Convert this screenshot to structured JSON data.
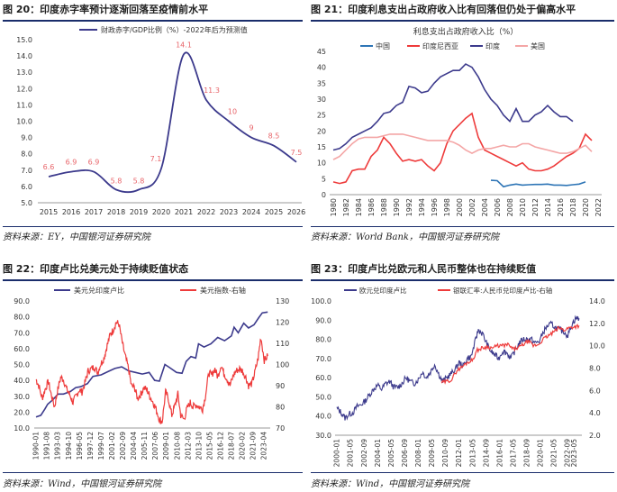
{
  "panels": [
    {
      "title": "图 20：印度赤字率预计逐渐回落至疫情前水平",
      "source": "资料来源：EY，中国银河证券研究院",
      "chart_data": {
        "type": "line",
        "legend": "财政赤字/GDP比例（%）-2022年后为预测值",
        "x": [
          2015,
          2016,
          2017,
          2018,
          2019,
          2020,
          2021,
          2022,
          2023,
          2024,
          2025,
          2026
        ],
        "ylim": [
          5.0,
          15.0
        ],
        "yticks": [
          "5.0",
          "6.0",
          "7.0",
          "8.0",
          "9.0",
          "10.0",
          "11.0",
          "12.0",
          "13.0",
          "14.0",
          "15.0"
        ],
        "xticks": [
          "2015",
          "2016",
          "2017",
          "2018",
          "2019",
          "2020",
          "2021",
          "2022",
          "2023",
          "2024",
          "2025",
          "2026"
        ],
        "values": [
          6.6,
          6.9,
          6.9,
          5.8,
          5.8,
          7.1,
          14.1,
          11.3,
          10.0,
          9.0,
          8.5,
          7.5
        ],
        "labels": [
          "6.6",
          "6.9",
          "6.9",
          "5.8",
          "5.8",
          "7.1",
          "14.1",
          "11.3",
          "10",
          "9",
          "8.5",
          "7.5"
        ],
        "line_color": "#3c3a8c",
        "label_color": "#e8656a"
      }
    },
    {
      "title": "图 21：印度利息支出占政府收入比有回落但仍处于偏高水平",
      "source": "资料来源：World Bank，中国银河证券研究院",
      "chart_data": {
        "type": "line",
        "title": "利息支出占政府收入比（%）",
        "ylim": [
          0,
          45
        ],
        "yticks": [
          "0",
          "5",
          "10",
          "15",
          "20",
          "25",
          "30",
          "35",
          "40",
          "45"
        ],
        "xticks": [
          "1980",
          "1982",
          "1984",
          "1986",
          "1988",
          "1990",
          "1992",
          "1994",
          "1996",
          "1998",
          "2000",
          "2002",
          "2004",
          "2006",
          "2008",
          "2010",
          "2012",
          "2014",
          "2016",
          "2018",
          "2020",
          "2022"
        ],
        "series": [
          {
            "name": "中国",
            "color": "#2e75b6",
            "x": [
              2005,
              2006,
              2007,
              2008,
              2009,
              2010,
              2011,
              2012,
              2013,
              2014,
              2015,
              2016,
              2017,
              2018,
              2019,
              2020
            ],
            "values": [
              4.5,
              4.4,
              2.5,
              3.0,
              3.3,
              3.0,
              3.1,
              3.2,
              3.2,
              3.3,
              3.0,
              3.0,
              2.9,
              3.1,
              3.3,
              4.0
            ]
          },
          {
            "name": "印度尼西亚",
            "color": "#ee3b3b",
            "x": [
              1980,
              1981,
              1982,
              1983,
              1984,
              1985,
              1986,
              1987,
              1988,
              1989,
              1990,
              1991,
              1992,
              1993,
              1994,
              1995,
              1996,
              1997,
              1998,
              1999,
              2000,
              2001,
              2002,
              2003,
              2004,
              2005,
              2006,
              2007,
              2008,
              2009,
              2010,
              2011,
              2012,
              2013,
              2014,
              2015,
              2016,
              2017,
              2018,
              2019,
              2020,
              2021
            ],
            "values": [
              4,
              3.5,
              4,
              7.5,
              8,
              8,
              12,
              14,
              18,
              16,
              13,
              10.5,
              11,
              10.5,
              11,
              9,
              7.5,
              10,
              16,
              20,
              22,
              24,
              25.5,
              18,
              14,
              13,
              12,
              11,
              10,
              9,
              10,
              8,
              7.5,
              7.5,
              8,
              9,
              10.5,
              12,
              13,
              14.5,
              19,
              17
            ]
          },
          {
            "name": "印度",
            "color": "#3c3a8c",
            "x": [
              1980,
              1981,
              1982,
              1983,
              1984,
              1985,
              1986,
              1987,
              1988,
              1989,
              1990,
              1991,
              1992,
              1993,
              1994,
              1995,
              1996,
              1997,
              1998,
              1999,
              2000,
              2001,
              2002,
              2003,
              2004,
              2005,
              2006,
              2007,
              2008,
              2009,
              2010,
              2011,
              2012,
              2013,
              2014,
              2015,
              2016,
              2017,
              2018
            ],
            "values": [
              14,
              14.5,
              16,
              18,
              19,
              20,
              21,
              23,
              25.5,
              26,
              28,
              29,
              34,
              33.5,
              32,
              32.5,
              35,
              37,
              38,
              39,
              39,
              41,
              40,
              37,
              33,
              30,
              28,
              25,
              23,
              27,
              23,
              23,
              25,
              26,
              28,
              26,
              24.5,
              24.5,
              23
            ]
          },
          {
            "name": "美国",
            "color": "#f4a6a6",
            "x": [
              1980,
              1981,
              1982,
              1983,
              1984,
              1985,
              1986,
              1987,
              1988,
              1989,
              1990,
              1991,
              1992,
              1993,
              1994,
              1995,
              1996,
              1997,
              1998,
              1999,
              2000,
              2001,
              2002,
              2003,
              2004,
              2005,
              2006,
              2007,
              2008,
              2009,
              2010,
              2011,
              2012,
              2013,
              2014,
              2015,
              2016,
              2017,
              2018,
              2019,
              2020,
              2021
            ],
            "values": [
              11,
              12,
              14,
              16,
              17.5,
              18,
              18,
              18,
              18.5,
              19,
              19,
              19,
              18.5,
              18,
              17.5,
              17,
              17,
              17,
              17,
              16.5,
              15.5,
              14,
              13,
              14,
              14.5,
              14.5,
              15,
              15.5,
              15,
              15,
              16,
              16,
              15,
              14.5,
              14,
              13.5,
              13,
              13,
              13.5,
              14.5,
              15.5,
              13.5
            ]
          }
        ]
      }
    },
    {
      "title": "图 22：印度卢比兑美元处于持续贬值状态",
      "source": "资料来源：Wind，中国银河证券研究院",
      "chart_data": {
        "type": "line",
        "ylim": [
          10.0,
          90.0
        ],
        "yticks": [
          "10.0",
          "20.0",
          "30.0",
          "40.0",
          "50.0",
          "60.0",
          "70.0",
          "80.0",
          "90.0"
        ],
        "y2lim": [
          70,
          130
        ],
        "y2ticks": [
          "70",
          "80",
          "90",
          "100",
          "110",
          "120",
          "130"
        ],
        "xticks": [
          "1990-01",
          "1991-08",
          "1993-03",
          "1994-10",
          "1996-05",
          "1997-12",
          "1999-07",
          "2001-02",
          "2002-09",
          "2004-04",
          "2005-11",
          "2007-06",
          "2009-01",
          "2010-08",
          "2012-03",
          "2013-10",
          "2015-05",
          "2016-12",
          "2018-07",
          "2020-02",
          "2021-09",
          "2023-04"
        ],
        "series": [
          {
            "name": "美元兑印度卢比",
            "color": "#3c3a8c",
            "axis": "left",
            "x": [
              1990.0,
              1990.7,
              1991.3,
              1991.7,
              1992.5,
              1993.2,
              1994.0,
              1995.0,
              1995.8,
              1996.5,
              1997.5,
              1998.3,
              1999.5,
              2000.5,
              2001.5,
              2002.5,
              2003.5,
              2004.5,
              2005.5,
              2006.5,
              2007.3,
              2008.0,
              2008.8,
              2009.5,
              2010.5,
              2011.3,
              2011.9,
              2012.6,
              2013.3,
              2013.7,
              2014.5,
              2015.5,
              2016.5,
              2017.5,
              2018.5,
              2018.9,
              2019.5,
              2020.3,
              2021.0,
              2021.8,
              2022.5,
              2023.0,
              2023.8
            ],
            "values": [
              17,
              18,
              22,
              25,
              28,
              31.4,
              31.4,
              33,
              35.5,
              36,
              38,
              42.5,
              43.5,
              45.5,
              47.5,
              48.5,
              46,
              45,
              44,
              45,
              40,
              39.5,
              50,
              48,
              45,
              44.5,
              52,
              55,
              54,
              63,
              61,
              63,
              67,
              65,
              68,
              73.5,
              70,
              76,
              73,
              75,
              79.5,
              82.5,
              83
            ]
          },
          {
            "name": "美元指数-右轴",
            "color": "#ee3b3b",
            "axis": "right",
            "x": [
              1990.0,
              1990.4,
              1990.9,
              1991.3,
              1991.8,
              1992.2,
              1992.7,
              1993.1,
              1993.6,
              1994.0,
              1994.5,
              1994.9,
              1995.4,
              1995.8,
              1996.3,
              1996.7,
              1997.2,
              1997.6,
              1998.1,
              1998.5,
              1999.0,
              1999.4,
              1999.9,
              2000.3,
              2000.8,
              2001.2,
              2001.7,
              2002.1,
              2002.6,
              2003.0,
              2003.5,
              2003.9,
              2004.4,
              2004.8,
              2005.3,
              2005.7,
              2006.2,
              2006.6,
              2007.1,
              2007.5,
              2008.0,
              2008.4,
              2008.9,
              2009.3,
              2009.8,
              2010.2,
              2010.7,
              2011.1,
              2011.6,
              2012.0,
              2012.5,
              2012.9,
              2013.4,
              2013.8,
              2014.3,
              2014.7,
              2015.2,
              2015.6,
              2016.1,
              2016.5,
              2017.0,
              2017.4,
              2017.9,
              2018.3,
              2018.8,
              2019.2,
              2019.7,
              2020.1,
              2020.6,
              2021.0,
              2021.5,
              2021.9,
              2022.4,
              2022.8,
              2023.3,
              2023.8
            ],
            "values": [
              93,
              90,
              84,
              88,
              92,
              86,
              80,
              87,
              94,
              93,
              88,
              86,
              82,
              85,
              88,
              87,
              92,
              97,
              98,
              99,
              96,
              100,
              103,
              108,
              114,
              116,
              120,
              119,
              110,
              104,
              98,
              90,
              89,
              84,
              86,
              89,
              88,
              85,
              82,
              79,
              74,
              73,
              87,
              84,
              76,
              80,
              86,
              76,
              74,
              79,
              82,
              80,
              81,
              80,
              79,
              85,
              96,
              95,
              98,
              94,
              100,
              96,
              93,
              90,
              95,
              97,
              98,
              97,
              94,
              90,
              91,
              96,
              103,
              113,
              102,
              104
            ]
          }
        ]
      }
    },
    {
      "title": "图 23：印度卢比兑欧元和人民币整体也在持续贬值",
      "source": "资料来源：Wind，中国银河证券研究院",
      "chart_data": {
        "type": "line",
        "ylim": [
          30.0,
          100.0
        ],
        "yticks": [
          "30.0",
          "40.0",
          "50.0",
          "60.0",
          "70.0",
          "80.0",
          "90.0",
          "100.0"
        ],
        "y2lim": [
          2.0,
          14.0
        ],
        "y2ticks": [
          "2.0",
          "4.0",
          "6.0",
          "8.0",
          "10.0",
          "12.0",
          "14.0"
        ],
        "xticks": [
          "2000-01",
          "2001-05",
          "2002-09",
          "2004-01",
          "2005-05",
          "2006-09",
          "2008-01",
          "2009-05",
          "2010-09",
          "2012-01",
          "2013-05",
          "2014-09",
          "2016-01",
          "2017-05",
          "2018-09",
          "2020-01",
          "2021-05",
          "2022-09",
          "2023-05"
        ],
        "series": [
          {
            "name": "欧元兑印度卢比",
            "color": "#3c3a8c",
            "axis": "left",
            "x": [
              2000.0,
              2000.4,
              2000.8,
              2001.2,
              2001.6,
              2002.0,
              2002.4,
              2002.8,
              2003.2,
              2003.6,
              2004.0,
              2004.4,
              2004.8,
              2005.2,
              2005.6,
              2006.0,
              2006.4,
              2006.8,
              2007.2,
              2007.6,
              2008.0,
              2008.4,
              2008.8,
              2009.2,
              2009.6,
              2010.0,
              2010.4,
              2010.8,
              2011.2,
              2011.6,
              2012.0,
              2012.4,
              2012.8,
              2013.2,
              2013.6,
              2013.9,
              2014.3,
              2014.7,
              2015.1,
              2015.5,
              2015.9,
              2016.3,
              2016.7,
              2017.1,
              2017.5,
              2017.9,
              2018.3,
              2018.7,
              2019.1,
              2019.5,
              2019.9,
              2020.3,
              2020.7,
              2021.1,
              2021.5,
              2021.9,
              2022.3,
              2022.7,
              2023.1,
              2023.5,
              2023.8
            ],
            "values": [
              44,
              42,
              39,
              41,
              42,
              45,
              46,
              48,
              51,
              54,
              56,
              54,
              57,
              58,
              55,
              55,
              57,
              60,
              58,
              57,
              59,
              63,
              60,
              63,
              67,
              62,
              58,
              60,
              62,
              64,
              68,
              66,
              70,
              71,
              79,
              85,
              83,
              78,
              74,
              72,
              70,
              74,
              73,
              70,
              74,
              78,
              80,
              80,
              80,
              78,
              79,
              84,
              87,
              88,
              86,
              85,
              84,
              82,
              88,
              91,
              91
            ]
          },
          {
            "name": "银联汇率:人民币兑印度卢比-右轴",
            "color": "#ee3b3b",
            "axis": "right",
            "x": [
              2010.3,
              2010.8,
              2011.3,
              2011.8,
              2012.3,
              2012.8,
              2013.3,
              2013.8,
              2014.3,
              2014.8,
              2015.3,
              2015.8,
              2016.3,
              2016.8,
              2017.3,
              2017.8,
              2018.3,
              2018.8,
              2019.3,
              2019.8,
              2020.3,
              2020.8,
              2021.3,
              2021.8,
              2022.3,
              2022.8,
              2023.3,
              2023.8
            ],
            "values": [
              6.7,
              6.8,
              7.0,
              7.8,
              8.1,
              8.5,
              8.7,
              9.6,
              9.8,
              9.9,
              9.8,
              10.0,
              10.0,
              10.1,
              9.7,
              9.8,
              10.1,
              10.4,
              10.0,
              10.1,
              10.6,
              10.9,
              11.2,
              11.6,
              11.4,
              11.6,
              11.7,
              11.8
            ]
          }
        ]
      }
    }
  ]
}
